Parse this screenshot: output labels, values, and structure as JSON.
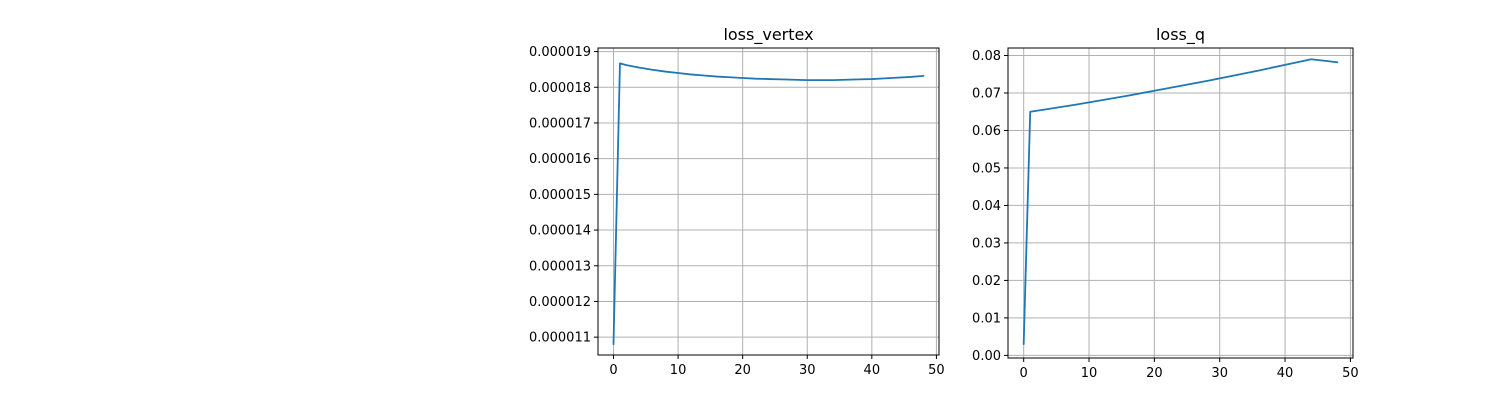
{
  "chart_data": [
    {
      "type": "line",
      "title": "loss_vertex",
      "xlabel": "",
      "ylabel": "",
      "xlim": [
        -2.4,
        50.4
      ],
      "ylim": [
        1.05e-05,
        1.91e-05
      ],
      "grid": true,
      "xticks": [
        0,
        10,
        20,
        30,
        40,
        50
      ],
      "xtick_labels": [
        "0",
        "10",
        "20",
        "30",
        "40",
        "50"
      ],
      "yticks": [
        1.1e-05,
        1.2e-05,
        1.3e-05,
        1.4e-05,
        1.5e-05,
        1.6e-05,
        1.7e-05,
        1.8e-05,
        1.9e-05
      ],
      "ytick_labels": [
        "0.000011",
        "0.000012",
        "0.000013",
        "0.000014",
        "0.000015",
        "0.000016",
        "0.000017",
        "0.000018",
        "0.000019"
      ],
      "series": [
        {
          "color": "#1f77b4",
          "x": [
            0,
            1,
            2,
            4,
            6,
            8,
            10,
            12,
            14,
            16,
            18,
            20,
            22,
            24,
            26,
            28,
            30,
            32,
            34,
            36,
            38,
            40,
            42,
            44,
            46,
            48
          ],
          "y": [
            1.08e-05,
            1.867e-05,
            1.862e-05,
            1.855e-05,
            1.849e-05,
            1.844e-05,
            1.84e-05,
            1.836e-05,
            1.833e-05,
            1.83e-05,
            1.828e-05,
            1.826e-05,
            1.824e-05,
            1.823e-05,
            1.822e-05,
            1.821e-05,
            1.82e-05,
            1.82e-05,
            1.82e-05,
            1.821e-05,
            1.822e-05,
            1.823e-05,
            1.825e-05,
            1.827e-05,
            1.829e-05,
            1.832e-05
          ]
        }
      ]
    },
    {
      "type": "line",
      "title": "loss_q",
      "xlabel": "",
      "ylabel": "",
      "xlim": [
        -2.4,
        50.4
      ],
      "ylim": [
        -0.0007,
        0.082
      ],
      "grid": true,
      "xticks": [
        0,
        10,
        20,
        30,
        40,
        50
      ],
      "xtick_labels": [
        "0",
        "10",
        "20",
        "30",
        "40",
        "50"
      ],
      "yticks": [
        0.0,
        0.01,
        0.02,
        0.03,
        0.04,
        0.05,
        0.06,
        0.07,
        0.08
      ],
      "ytick_labels": [
        "0.00",
        "0.01",
        "0.02",
        "0.03",
        "0.04",
        "0.05",
        "0.06",
        "0.07",
        "0.08"
      ],
      "series": [
        {
          "color": "#1f77b4",
          "x": [
            0,
            1,
            4,
            8,
            12,
            16,
            20,
            24,
            28,
            32,
            36,
            40,
            44,
            48
          ],
          "y": [
            0.003,
            0.065,
            0.0658,
            0.0669,
            0.0681,
            0.0693,
            0.0706,
            0.0719,
            0.0732,
            0.0746,
            0.076,
            0.0775,
            0.079,
            0.0782
          ]
        }
      ]
    }
  ]
}
